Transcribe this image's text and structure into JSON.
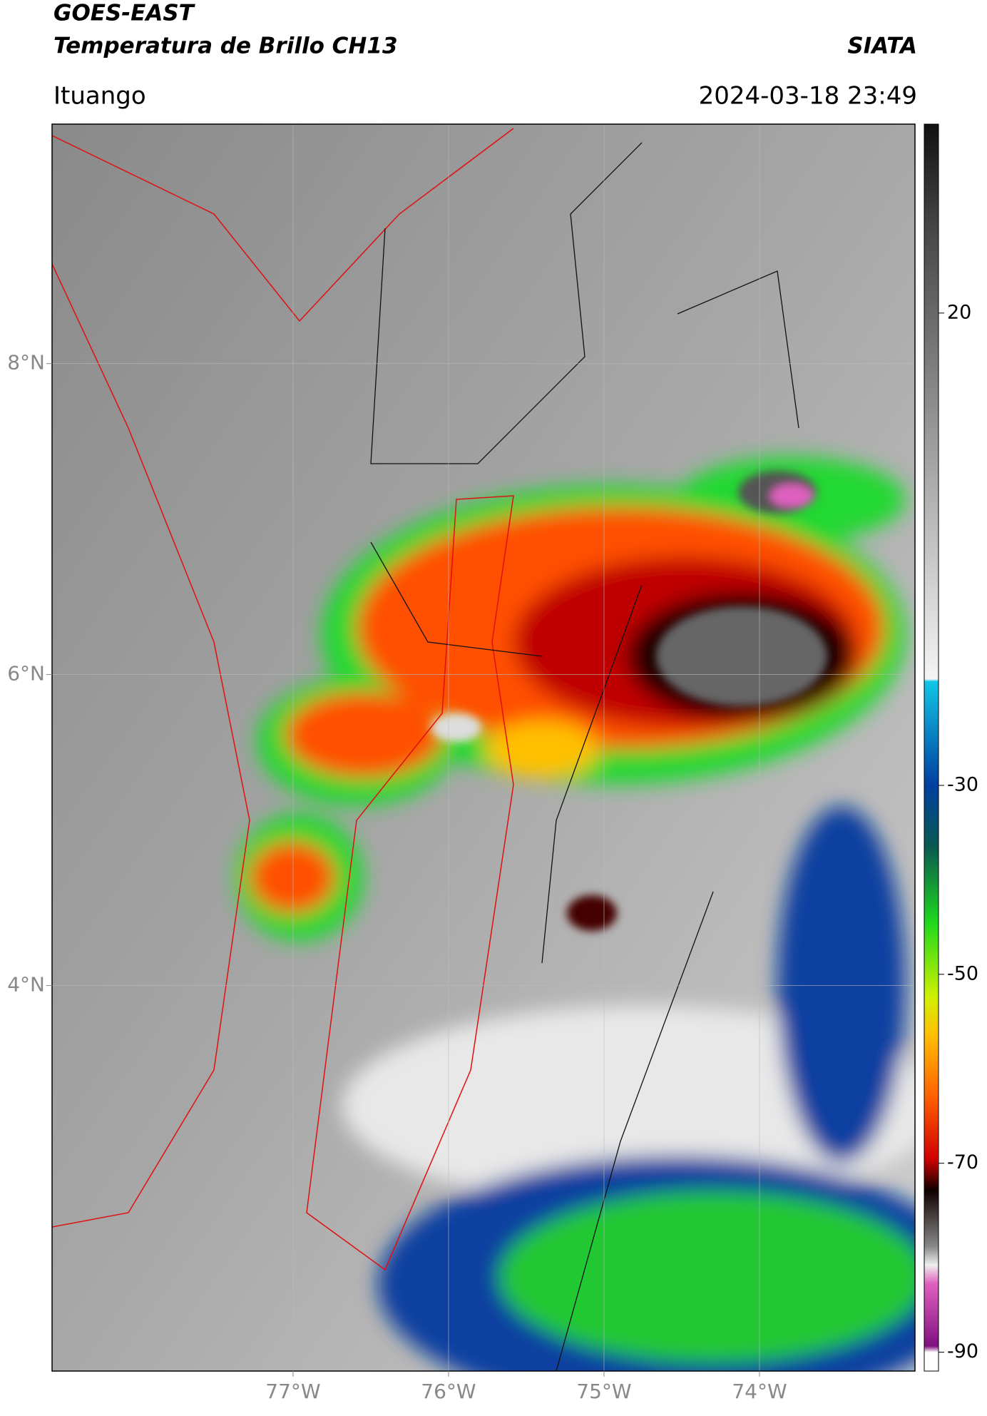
{
  "header": {
    "title": "GOES-EAST",
    "subtitle": "Temperatura de Brillo CH13",
    "source": "SIATA",
    "location": "Ituango",
    "datetime": "2024-03-18 23:49"
  },
  "map": {
    "type": "map",
    "xlim": [
      -78.55,
      -73.0
    ],
    "ylim": [
      1.52,
      9.54
    ],
    "xticks": [
      {
        "value": -77,
        "label": "77°W"
      },
      {
        "value": -76,
        "label": "76°W"
      },
      {
        "value": -75,
        "label": "75°W"
      },
      {
        "value": -74,
        "label": "74°W"
      }
    ],
    "yticks": [
      {
        "value": 4,
        "label": "4°N"
      },
      {
        "value": 6,
        "label": "6°N"
      },
      {
        "value": 8,
        "label": "8°N"
      }
    ],
    "grid": true,
    "colorbar": {
      "lim": [
        -92,
        40
      ],
      "ticks": [
        20,
        -30,
        -50,
        -70,
        -90
      ]
    }
  }
}
